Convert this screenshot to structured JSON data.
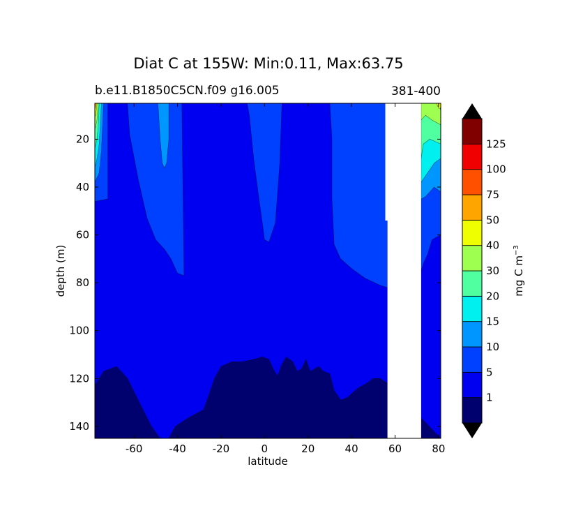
{
  "chart_data": {
    "type": "contour",
    "title": "Diat C at 155W: Min:0.11, Max:63.75",
    "subtitle_left": "b.e11.B1850C5CN.f09 g16.005",
    "subtitle_right": "381-400",
    "xlabel": "latitude",
    "ylabel": "depth (m)",
    "xlim": [
      -78,
      81
    ],
    "ylim": [
      145,
      5
    ],
    "y_inverted": true,
    "x_ticks": [
      "-60",
      "-40",
      "-20",
      "0",
      "20",
      "40",
      "60",
      "80"
    ],
    "x_tick_values": [
      -60,
      -40,
      -20,
      0,
      20,
      40,
      60,
      80
    ],
    "y_ticks": [
      "20",
      "40",
      "60",
      "80",
      "100",
      "120",
      "140"
    ],
    "y_tick_values": [
      20,
      40,
      60,
      80,
      100,
      120,
      140
    ],
    "colorbar": {
      "label": "mg C m",
      "label_sup": "−3",
      "levels": [
        0,
        1,
        5,
        10,
        15,
        20,
        30,
        40,
        50,
        75,
        100,
        125,
        150
      ],
      "tick_labels": [
        "1",
        "5",
        "10",
        "15",
        "20",
        "30",
        "40",
        "50",
        "75",
        "100",
        "125"
      ],
      "colors": [
        "#00006f",
        "#0000f0",
        "#0040ff",
        "#0096ff",
        "#00f0f0",
        "#50ff9f",
        "#9fff50",
        "#f0ff00",
        "#ffa500",
        "#ff5000",
        "#f00000",
        "#800000"
      ],
      "extend": "both"
    },
    "missing_data_region": {
      "lat_range": [
        56.5,
        72
      ],
      "note_color": "#ffffff"
    },
    "bands": [
      {
        "level": "1-5",
        "color": "#0000f0",
        "upper_boundary": [
          [
            -78,
            145
          ],
          [
            -78,
            123
          ],
          [
            -74,
            117
          ],
          [
            -68,
            115
          ],
          [
            -63,
            120
          ],
          [
            -57,
            131
          ],
          [
            -52,
            140
          ],
          [
            -48,
            145
          ],
          [
            -44,
            145
          ],
          [
            -41,
            140
          ],
          [
            -36,
            137
          ],
          [
            -32,
            135
          ],
          [
            -28,
            133
          ],
          [
            -26,
            128
          ],
          [
            -23,
            120
          ],
          [
            -20,
            115
          ],
          [
            -15,
            113
          ],
          [
            -10,
            113
          ],
          [
            -5,
            112
          ],
          [
            -1,
            111
          ],
          [
            2,
            112
          ],
          [
            4,
            116
          ],
          [
            6,
            119
          ],
          [
            8,
            114
          ],
          [
            10,
            111
          ],
          [
            13,
            113
          ],
          [
            15,
            117
          ],
          [
            17,
            116
          ],
          [
            19,
            112
          ],
          [
            21,
            117
          ],
          [
            25,
            115
          ],
          [
            27,
            117
          ],
          [
            30,
            118
          ],
          [
            32,
            125
          ],
          [
            35,
            129
          ],
          [
            38,
            128
          ],
          [
            43,
            124
          ],
          [
            47,
            122
          ],
          [
            50,
            120
          ],
          [
            53,
            120
          ],
          [
            56.5,
            122
          ]
        ]
      },
      {
        "level": "5-10",
        "color": "#0040ff",
        "regions": [
          [
            [
              -78,
              5
            ],
            [
              -72,
              5
            ],
            [
              -72,
              45
            ],
            [
              -78,
              46
            ]
          ],
          [
            [
              -63,
              5
            ],
            [
              -38,
              5
            ],
            [
              -37,
              77
            ],
            [
              -40,
              76
            ],
            [
              -43,
              70
            ],
            [
              -46,
              66
            ],
            [
              -50,
              62
            ],
            [
              -54,
              53
            ],
            [
              -58,
              37
            ],
            [
              -62,
              18
            ]
          ],
          [
            [
              -8,
              5
            ],
            [
              8,
              5
            ],
            [
              7,
              30
            ],
            [
              5,
              55
            ],
            [
              2,
              63
            ],
            [
              0,
              62
            ],
            [
              -1,
              55
            ],
            [
              -3,
              42
            ],
            [
              -5,
              28
            ],
            [
              -7,
              10
            ]
          ],
          [
            [
              30,
              5
            ],
            [
              56.5,
              5
            ],
            [
              56.5,
              82
            ],
            [
              53,
              81
            ],
            [
              46,
              78
            ],
            [
              40,
              74
            ],
            [
              35,
              70
            ],
            [
              32,
              64
            ],
            [
              31,
              45
            ],
            [
              31,
              20
            ]
          ],
          [
            [
              72,
              5
            ],
            [
              81,
              5
            ],
            [
              81,
              60
            ],
            [
              77,
              62
            ],
            [
              75,
              68
            ],
            [
              73,
              72
            ],
            [
              72,
              75
            ]
          ]
        ]
      },
      {
        "level": "10-15",
        "color": "#0096ff",
        "regions": [
          [
            [
              -49,
              5
            ],
            [
              -44,
              5
            ],
            [
              -44,
              20
            ],
            [
              -45,
              30
            ],
            [
              -46,
              32
            ],
            [
              -47,
              30
            ],
            [
              -48,
              20
            ]
          ],
          [
            [
              72,
              25
            ],
            [
              81,
              25
            ],
            [
              81,
              42
            ],
            [
              78,
              40
            ],
            [
              74,
              44
            ],
            [
              72,
              45
            ]
          ]
        ]
      },
      {
        "level": "15-20",
        "color": "#00f0f0",
        "regions": [
          [
            [
              72,
              20
            ],
            [
              81,
              20
            ],
            [
              81,
              28
            ],
            [
              78,
              30
            ],
            [
              75,
              34
            ],
            [
              72,
              38
            ]
          ]
        ]
      },
      {
        "level": "20-30",
        "color": "#50ff9f",
        "regions": [
          [
            [
              72,
              10
            ],
            [
              81,
              10
            ],
            [
              81,
              22
            ],
            [
              76,
              20
            ],
            [
              73,
              22
            ],
            [
              72,
              28
            ]
          ]
        ]
      },
      {
        "level": "30-40",
        "color": "#9fff50",
        "regions": [
          [
            [
              72,
              5
            ],
            [
              80,
              5
            ],
            [
              81,
              8
            ],
            [
              81,
              14
            ],
            [
              77,
              12
            ],
            [
              74,
              10
            ],
            [
              72,
              12
            ]
          ]
        ]
      },
      {
        "level": "40-50",
        "color": "#f0ff00",
        "regions": [
          [
            [
              79,
              5
            ],
            [
              81,
              5
            ],
            [
              81,
              7
            ],
            [
              80,
              7
            ]
          ]
        ]
      }
    ],
    "south_edge_stack": [
      {
        "color": "#0096ff",
        "poly": [
          [
            -78,
            5
          ],
          [
            -74,
            5
          ],
          [
            -75,
            25
          ],
          [
            -76,
            34
          ],
          [
            -78,
            38
          ]
        ]
      },
      {
        "color": "#00f0f0",
        "poly": [
          [
            -78,
            5
          ],
          [
            -75,
            5
          ],
          [
            -76,
            22
          ],
          [
            -77,
            28
          ],
          [
            -78,
            32
          ]
        ]
      },
      {
        "color": "#50ff9f",
        "poly": [
          [
            -78,
            5
          ],
          [
            -76,
            5
          ],
          [
            -76.5,
            15
          ],
          [
            -77,
            20
          ],
          [
            -78,
            24
          ]
        ]
      },
      {
        "color": "#9fff50",
        "poly": [
          [
            -78,
            5
          ],
          [
            -76.5,
            5
          ],
          [
            -77,
            12
          ],
          [
            -78,
            16
          ]
        ]
      },
      {
        "color": "#f0ff00",
        "poly": [
          [
            -78,
            5
          ],
          [
            -77,
            5
          ],
          [
            -77.5,
            9
          ],
          [
            -78,
            11
          ]
        ]
      },
      {
        "color": "#ffa500",
        "poly": [
          [
            -78,
            5
          ],
          [
            -77.3,
            5
          ],
          [
            -77.8,
            7
          ],
          [
            -78,
            8
          ]
        ]
      }
    ]
  }
}
